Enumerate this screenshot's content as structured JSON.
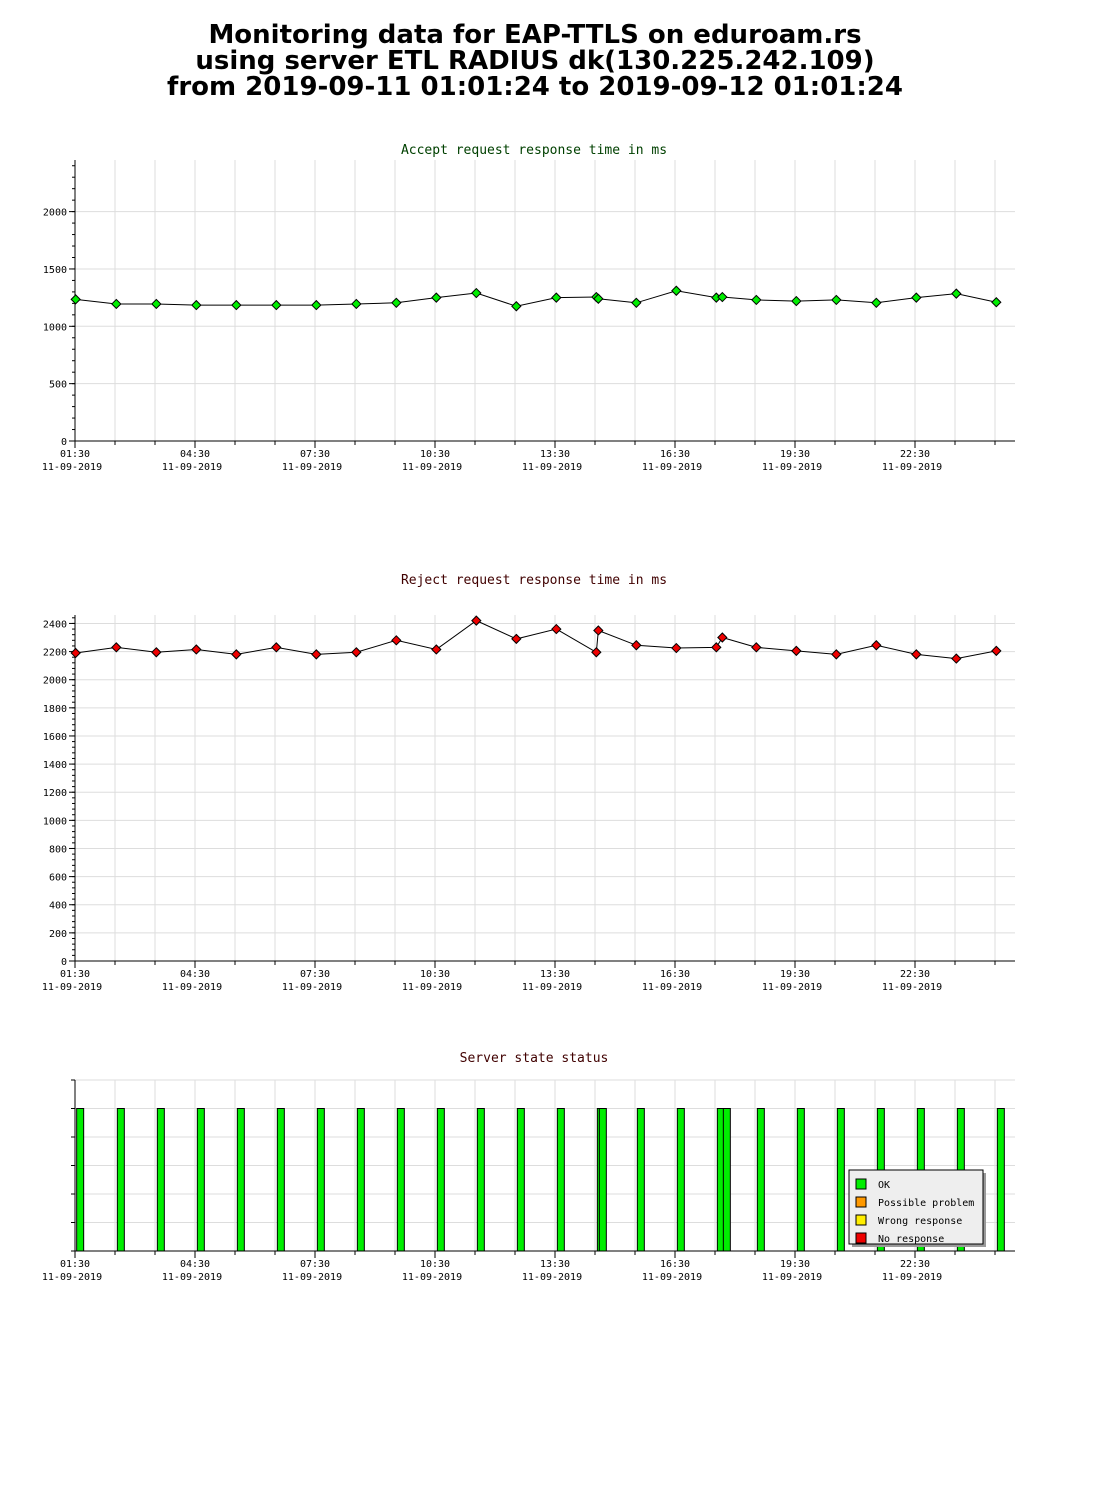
{
  "page": {
    "title_lines": [
      "Monitoring data for EAP-TTLS on eduroam.rs",
      "using server ETL RADIUS dk(130.225.242.109)",
      "from 2019-09-11 01:01:24 to 2019-09-12 01:01:24"
    ]
  },
  "colors": {
    "accept_title": "#004000",
    "reject_title": "#400000",
    "status_title": "#400000",
    "accept_marker": "#00ee00",
    "reject_marker": "#ee0000",
    "ok": "#00ee00",
    "possible_problem": "#ff9900",
    "wrong_response": "#ffee00",
    "no_response": "#ee0000",
    "grid": "#dddddd",
    "axis": "#000000"
  },
  "chart_data": [
    {
      "type": "line",
      "title": "Accept request response time in ms",
      "x_tick_labels": [
        [
          "01:30",
          "11-09-2019"
        ],
        [
          "04:30",
          "11-09-2019"
        ],
        [
          "07:30",
          "11-09-2019"
        ],
        [
          "10:30",
          "11-09-2019"
        ],
        [
          "13:30",
          "11-09-2019"
        ],
        [
          "16:30",
          "11-09-2019"
        ],
        [
          "19:30",
          "11-09-2019"
        ],
        [
          "22:30",
          "11-09-2019"
        ]
      ],
      "y_tick_labels": [
        "0",
        "500",
        "1000",
        "1500",
        "2000"
      ],
      "ylim": [
        0,
        2450
      ],
      "grid": true,
      "series": [
        {
          "x": [
            "01:31",
            "02:32",
            "03:32",
            "04:32",
            "05:32",
            "06:32",
            "07:32",
            "08:32",
            "09:32",
            "10:32",
            "11:32",
            "12:32",
            "13:32",
            "14:32",
            "14:35",
            "15:32",
            "16:32",
            "17:32",
            "17:41",
            "18:32",
            "19:32",
            "20:32",
            "21:32",
            "22:32",
            "23:32",
            "00:32"
          ],
          "values": [
            1235,
            1195,
            1195,
            1185,
            1185,
            1185,
            1185,
            1195,
            1205,
            1250,
            1290,
            1175,
            1250,
            1255,
            1240,
            1205,
            1310,
            1250,
            1255,
            1230,
            1220,
            1230,
            1205,
            1250,
            1285,
            1210
          ]
        }
      ]
    },
    {
      "type": "line",
      "title": "Reject request response time in ms",
      "x_tick_labels": [
        [
          "01:30",
          "11-09-2019"
        ],
        [
          "04:30",
          "11-09-2019"
        ],
        [
          "07:30",
          "11-09-2019"
        ],
        [
          "10:30",
          "11-09-2019"
        ],
        [
          "13:30",
          "11-09-2019"
        ],
        [
          "16:30",
          "11-09-2019"
        ],
        [
          "19:30",
          "11-09-2019"
        ],
        [
          "22:30",
          "11-09-2019"
        ]
      ],
      "y_tick_labels": [
        "0",
        "200",
        "400",
        "600",
        "800",
        "1000",
        "1200",
        "1400",
        "1600",
        "1800",
        "2000",
        "2200",
        "2400"
      ],
      "ylim": [
        0,
        2460
      ],
      "grid": true,
      "series": [
        {
          "x": [
            "01:31",
            "02:32",
            "03:32",
            "04:32",
            "05:32",
            "06:32",
            "07:32",
            "08:32",
            "09:32",
            "10:32",
            "11:32",
            "12:32",
            "13:32",
            "14:32",
            "14:35",
            "15:32",
            "16:32",
            "17:32",
            "17:41",
            "18:32",
            "19:32",
            "20:32",
            "21:32",
            "22:32",
            "23:32",
            "00:32"
          ],
          "values": [
            2190,
            2230,
            2195,
            2215,
            2180,
            2230,
            2180,
            2195,
            2280,
            2215,
            2420,
            2290,
            2360,
            2195,
            2350,
            2245,
            2225,
            2230,
            2300,
            2230,
            2205,
            2180,
            2245,
            2180,
            2150,
            2205
          ]
        }
      ]
    },
    {
      "type": "bar",
      "title": "Server state status",
      "x_tick_labels": [
        [
          "01:30",
          "11-09-2019"
        ],
        [
          "04:30",
          "11-09-2019"
        ],
        [
          "07:30",
          "11-09-2019"
        ],
        [
          "10:30",
          "11-09-2019"
        ],
        [
          "13:30",
          "11-09-2019"
        ],
        [
          "16:30",
          "11-09-2019"
        ],
        [
          "19:30",
          "11-09-2019"
        ],
        [
          "22:30",
          "11-09-2019"
        ]
      ],
      "x": [
        "01:31",
        "02:32",
        "03:32",
        "04:32",
        "05:32",
        "06:32",
        "07:32",
        "08:32",
        "09:32",
        "10:32",
        "11:32",
        "12:32",
        "13:32",
        "14:32",
        "14:35",
        "15:32",
        "16:32",
        "17:32",
        "17:41",
        "18:32",
        "19:32",
        "20:32",
        "21:32",
        "22:32",
        "23:32",
        "00:32"
      ],
      "states": [
        "OK",
        "OK",
        "OK",
        "OK",
        "OK",
        "OK",
        "OK",
        "OK",
        "OK",
        "OK",
        "OK",
        "OK",
        "OK",
        "OK",
        "OK",
        "OK",
        "OK",
        "OK",
        "OK",
        "OK",
        "OK",
        "OK",
        "OK",
        "OK",
        "OK",
        "OK"
      ],
      "legend": [
        {
          "label": "OK",
          "color_key": "ok"
        },
        {
          "label": "Possible problem",
          "color_key": "possible_problem"
        },
        {
          "label": "Wrong response",
          "color_key": "wrong_response"
        },
        {
          "label": "No response",
          "color_key": "no_response"
        }
      ],
      "legend_position": "bottom-right",
      "grid": true
    }
  ]
}
